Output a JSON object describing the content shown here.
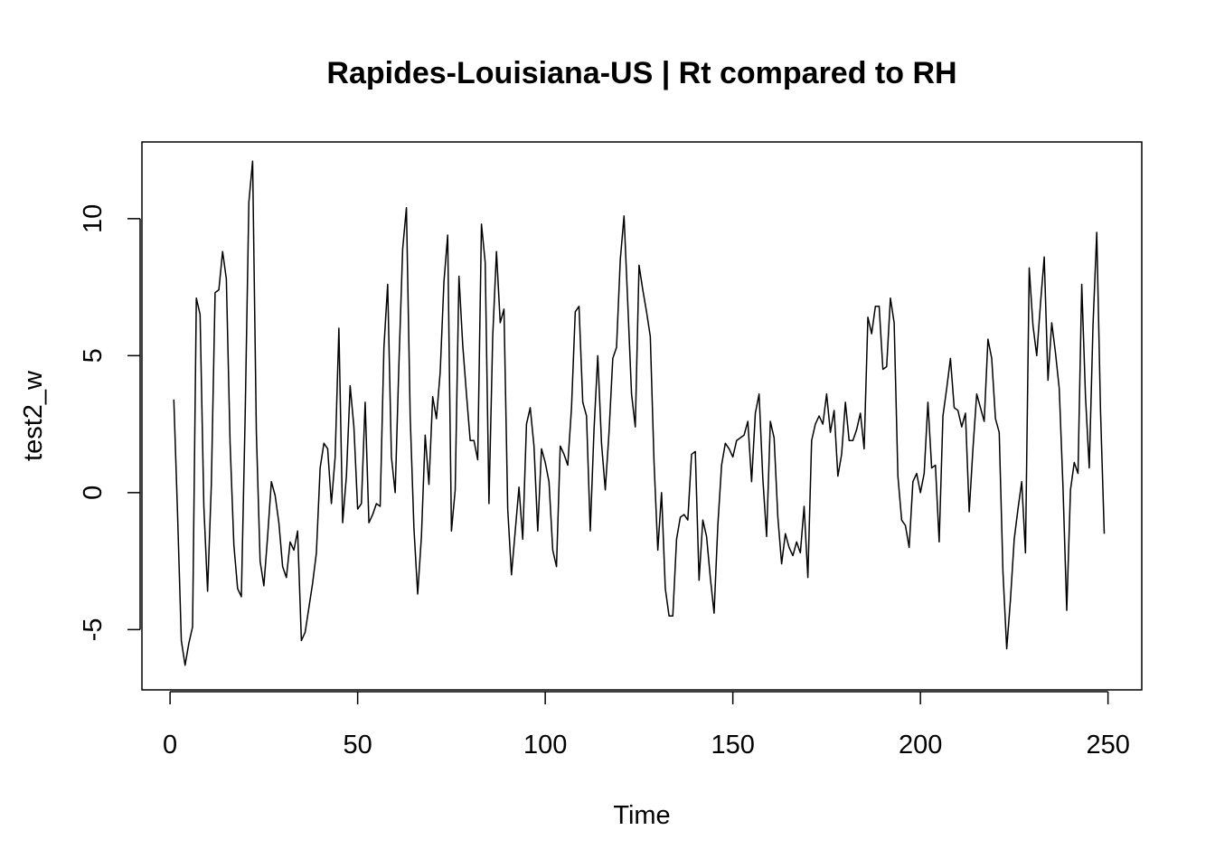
{
  "chart_data": {
    "type": "line",
    "title": "Rapides-Louisiana-US | Rt compared to RH",
    "xlabel": "Time",
    "ylabel": "test2_w",
    "xlim": [
      -7.5,
      259
    ],
    "ylim": [
      -7.2,
      12.8
    ],
    "x_ticks": [
      0,
      50,
      100,
      150,
      200,
      250
    ],
    "y_ticks": [
      -5,
      0,
      5,
      10
    ],
    "x_start": 1,
    "grid": false,
    "legend": "none",
    "line_color": "#000000",
    "series": [
      {
        "values": [
          3.4,
          -0.8,
          -5.4,
          -6.3,
          -5.5,
          -4.9,
          7.1,
          6.5,
          -0.5,
          -3.6,
          0.3,
          7.3,
          7.4,
          8.8,
          7.8,
          1.8,
          -1.9,
          -3.5,
          -3.8,
          2.7,
          10.6,
          12.1,
          2.2,
          -2.5,
          -3.4,
          -1.6,
          0.4,
          -0.1,
          -1.1,
          -2.7,
          -3.1,
          -1.8,
          -2.1,
          -1.4,
          -5.4,
          -5.1,
          -4.2,
          -3.3,
          -2.2,
          0.9,
          1.8,
          1.6,
          -0.4,
          1.3,
          6,
          -1.1,
          0.6,
          3.9,
          2.4,
          -0.6,
          -0.4,
          3.3,
          -1.1,
          -0.8,
          -0.4,
          -0.5,
          5.3,
          7.6,
          1.3,
          0,
          4.7,
          8.9,
          10.4,
          2.8,
          -1.3,
          -3.7,
          -1.6,
          2.1,
          0.3,
          3.5,
          2.7,
          4.4,
          7.7,
          9.4,
          -1.4,
          0.1,
          7.9,
          5.4,
          3.6,
          1.9,
          1.9,
          1.2,
          9.8,
          8.4,
          -0.4,
          5.7,
          8.8,
          6.2,
          6.7,
          -0.6,
          -3,
          -1.4,
          0.2,
          -1.7,
          2.5,
          3.1,
          1.7,
          -1.4,
          1.6,
          1.1,
          0.4,
          -2.1,
          -2.7,
          1.7,
          1.4,
          1,
          3.1,
          6.6,
          6.8,
          3.3,
          2.8,
          -1.4,
          2.3,
          5,
          1.8,
          0.1,
          2.2,
          4.9,
          5.3,
          8.5,
          10.1,
          6.9,
          3.6,
          2.4,
          8.3,
          7.4,
          6.6,
          5.7,
          1.1,
          -2.1,
          0,
          -3.5,
          -4.5,
          -4.5,
          -1.7,
          -0.9,
          -0.8,
          -1,
          1.4,
          1.5,
          -3.2,
          -1,
          -1.6,
          -3.1,
          -4.4,
          -1.2,
          1,
          1.8,
          1.6,
          1.3,
          1.9,
          2,
          2.1,
          2.6,
          0.4,
          2.9,
          3.6,
          0.5,
          -1.6,
          2.6,
          2,
          -0.9,
          -2.6,
          -1.5,
          -2,
          -2.3,
          -1.8,
          -2.2,
          -0.5,
          -3.1,
          1.9,
          2.5,
          2.8,
          2.5,
          3.6,
          2.2,
          3,
          0.6,
          1.4,
          3.3,
          1.9,
          1.9,
          2.3,
          2.9,
          1.6,
          6.4,
          5.8,
          6.8,
          6.8,
          4.5,
          4.6,
          7.1,
          6.2,
          0.6,
          -1,
          -1.2,
          -2,
          0.4,
          0.7,
          0,
          0.7,
          3.3,
          0.9,
          1,
          -1.8,
          2.8,
          3.8,
          4.9,
          3.1,
          3,
          2.4,
          2.9,
          -0.7,
          1.6,
          3.6,
          3.1,
          2.6,
          5.6,
          4.9,
          2.7,
          2.2,
          -2.9,
          -5.7,
          -3.9,
          -1.7,
          -0.6,
          0.4,
          -2.2,
          8.2,
          6.1,
          5,
          6.9,
          8.6,
          4.1,
          6.2,
          5.1,
          3.8,
          0.2,
          -4.3,
          0.1,
          1.1,
          0.7,
          7.6,
          3.5,
          0.9,
          6.1,
          9.5,
          3,
          -1.5
        ]
      }
    ]
  }
}
